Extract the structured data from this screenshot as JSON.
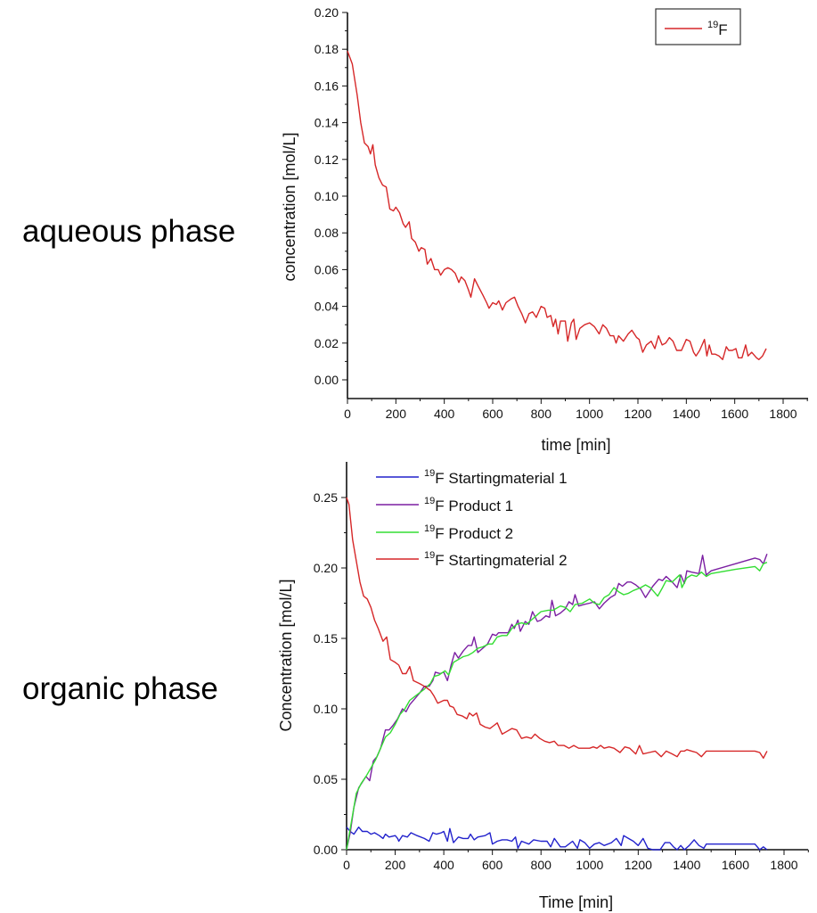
{
  "labels": {
    "top": "aqueous phase",
    "bottom": "organic phase"
  },
  "chart_data": [
    {
      "type": "line",
      "title": "",
      "xlabel": "time [min]",
      "ylabel": "concentration [mol/L]",
      "xlim": [
        0,
        1900
      ],
      "ylim": [
        -0.015,
        0.2
      ],
      "xticks": [
        "0",
        "200",
        "400",
        "600",
        "800",
        "1000",
        "1200",
        "1400",
        "1600",
        "1800"
      ],
      "yticks": [
        "0.00",
        "0.02",
        "0.04",
        "0.06",
        "0.08",
        "0.10",
        "0.12",
        "0.14",
        "0.16",
        "0.18",
        "0.20"
      ],
      "legend_position": "top-right",
      "grid": false,
      "series": [
        {
          "name": "19F",
          "sup": "19",
          "label": "F",
          "color": "#d62728",
          "x": [
            0,
            20,
            40,
            55,
            70,
            85,
            95,
            105,
            115,
            130,
            145,
            160,
            175,
            190,
            200,
            215,
            230,
            240,
            255,
            265,
            280,
            295,
            305,
            320,
            330,
            345,
            360,
            375,
            385,
            400,
            415,
            430,
            445,
            460,
            470,
            485,
            500,
            510,
            525,
            540,
            560,
            575,
            585,
            600,
            615,
            625,
            640,
            655,
            675,
            690,
            705,
            720,
            735,
            750,
            765,
            780,
            800,
            815,
            825,
            840,
            850,
            860,
            870,
            880,
            900,
            910,
            925,
            935,
            945,
            960,
            980,
            1000,
            1020,
            1040,
            1055,
            1070,
            1085,
            1100,
            1110,
            1120,
            1140,
            1160,
            1175,
            1195,
            1205,
            1220,
            1235,
            1255,
            1270,
            1285,
            1300,
            1315,
            1330,
            1345,
            1360,
            1380,
            1400,
            1415,
            1430,
            1440,
            1455,
            1475,
            1485,
            1495,
            1505,
            1520,
            1535,
            1550,
            1565,
            1575,
            1590,
            1605,
            1615,
            1630,
            1645,
            1655,
            1670,
            1690,
            1700,
            1715,
            1730
          ],
          "y": [
            0.179,
            0.172,
            0.155,
            0.14,
            0.129,
            0.127,
            0.123,
            0.128,
            0.117,
            0.11,
            0.106,
            0.105,
            0.093,
            0.092,
            0.094,
            0.091,
            0.085,
            0.083,
            0.086,
            0.077,
            0.075,
            0.07,
            0.072,
            0.071,
            0.063,
            0.066,
            0.06,
            0.06,
            0.057,
            0.06,
            0.061,
            0.06,
            0.058,
            0.053,
            0.056,
            0.054,
            0.049,
            0.045,
            0.055,
            0.051,
            0.046,
            0.042,
            0.039,
            0.042,
            0.041,
            0.043,
            0.038,
            0.042,
            0.044,
            0.045,
            0.04,
            0.036,
            0.031,
            0.036,
            0.037,
            0.034,
            0.04,
            0.039,
            0.034,
            0.035,
            0.029,
            0.033,
            0.025,
            0.032,
            0.032,
            0.021,
            0.031,
            0.033,
            0.022,
            0.028,
            0.03,
            0.031,
            0.029,
            0.025,
            0.03,
            0.028,
            0.024,
            0.024,
            0.02,
            0.024,
            0.021,
            0.025,
            0.027,
            0.023,
            0.022,
            0.015,
            0.019,
            0.021,
            0.017,
            0.024,
            0.019,
            0.02,
            0.023,
            0.021,
            0.016,
            0.016,
            0.022,
            0.021,
            0.015,
            0.013,
            0.016,
            0.022,
            0.013,
            0.019,
            0.014,
            0.014,
            0.013,
            0.011,
            0.018,
            0.016,
            0.016,
            0.017,
            0.012,
            0.012,
            0.019,
            0.013,
            0.015,
            0.012,
            0.011,
            0.013,
            0.017
          ]
        }
      ]
    },
    {
      "type": "line",
      "title": "",
      "xlabel": "Time [min]",
      "ylabel": "Concentration [mol/L]",
      "xlim": [
        0,
        1900
      ],
      "ylim": [
        0,
        0.275
      ],
      "xticks": [
        "0",
        "200",
        "400",
        "600",
        "800",
        "1000",
        "1200",
        "1400",
        "1600",
        "1800"
      ],
      "yticks": [
        "0.00",
        "0.05",
        "0.10",
        "0.15",
        "0.20",
        "0.25"
      ],
      "legend_position": "top-left",
      "grid": false,
      "series": [
        {
          "name": "19F Startingmaterial 1",
          "sup": "19",
          "label": "F Startingmaterial 1",
          "color": "#2222cc",
          "x": [
            0,
            15,
            30,
            50,
            65,
            85,
            100,
            115,
            135,
            150,
            160,
            175,
            200,
            210,
            215,
            230,
            250,
            265,
            290,
            320,
            340,
            355,
            370,
            390,
            400,
            415,
            425,
            440,
            460,
            480,
            500,
            510,
            525,
            540,
            570,
            590,
            600,
            620,
            640,
            660,
            680,
            695,
            705,
            720,
            750,
            770,
            800,
            825,
            840,
            855,
            880,
            900,
            930,
            950,
            960,
            980,
            1000,
            1020,
            1040,
            1060,
            1090,
            1110,
            1130,
            1140,
            1160,
            1180,
            1200,
            1220,
            1240,
            1260,
            1290,
            1310,
            1330,
            1345,
            1360,
            1375,
            1390,
            1410,
            1430,
            1450,
            1470,
            1480,
            1550,
            1600,
            1680,
            1700,
            1715,
            1730
          ],
          "y": [
            0.016,
            0.013,
            0.011,
            0.016,
            0.013,
            0.013,
            0.011,
            0.012,
            0.01,
            0.008,
            0.011,
            0.009,
            0.01,
            0.008,
            0.006,
            0.01,
            0.009,
            0.012,
            0.01,
            0.008,
            0.006,
            0.012,
            0.011,
            0.012,
            0.013,
            0.006,
            0.015,
            0.005,
            0.009,
            0.008,
            0.008,
            0.011,
            0.007,
            0.009,
            0.01,
            0.012,
            0.004,
            0.006,
            0.007,
            0.007,
            0.006,
            0.009,
            0.001,
            0.006,
            0.004,
            0.007,
            0.006,
            0.006,
            0.002,
            0.008,
            0.002,
            0.002,
            0.006,
            0.001,
            0.007,
            0.005,
            0.001,
            0.004,
            0.005,
            0.003,
            0.005,
            0.008,
            0.003,
            0.01,
            0.008,
            0.006,
            0.003,
            0.008,
            0.001,
            0.0,
            0.0,
            0.005,
            0.005,
            0.002,
            0.0,
            0.003,
            0.0,
            0.003,
            0.007,
            0.003,
            0.001,
            0.004,
            0.004,
            0.004,
            0.004,
            0.0,
            0.002,
            0.0
          ]
        },
        {
          "name": "19F Product 1",
          "sup": "19",
          "label": "F Product 1",
          "color": "#7b1fa2",
          "x": [
            0,
            15,
            30,
            50,
            65,
            80,
            95,
            110,
            125,
            140,
            160,
            175,
            190,
            210,
            230,
            245,
            260,
            280,
            300,
            320,
            340,
            355,
            365,
            385,
            400,
            415,
            430,
            445,
            460,
            480,
            500,
            515,
            525,
            540,
            560,
            580,
            600,
            615,
            625,
            650,
            665,
            680,
            690,
            705,
            715,
            735,
            750,
            765,
            785,
            800,
            820,
            835,
            845,
            860,
            880,
            900,
            915,
            930,
            940,
            955,
            975,
            1000,
            1020,
            1040,
            1060,
            1085,
            1105,
            1120,
            1135,
            1155,
            1170,
            1190,
            1210,
            1230,
            1260,
            1285,
            1300,
            1315,
            1340,
            1360,
            1375,
            1390,
            1400,
            1420,
            1450,
            1465,
            1480,
            1500,
            1600,
            1680,
            1700,
            1715,
            1730
          ],
          "y": [
            0,
            0.012,
            0.03,
            0.044,
            0.048,
            0.052,
            0.049,
            0.063,
            0.066,
            0.072,
            0.085,
            0.085,
            0.088,
            0.093,
            0.1,
            0.098,
            0.103,
            0.107,
            0.111,
            0.116,
            0.116,
            0.12,
            0.126,
            0.125,
            0.126,
            0.12,
            0.131,
            0.14,
            0.136,
            0.141,
            0.145,
            0.145,
            0.151,
            0.14,
            0.143,
            0.146,
            0.153,
            0.152,
            0.154,
            0.154,
            0.154,
            0.16,
            0.157,
            0.163,
            0.155,
            0.162,
            0.16,
            0.169,
            0.162,
            0.163,
            0.166,
            0.165,
            0.177,
            0.166,
            0.168,
            0.171,
            0.176,
            0.174,
            0.181,
            0.173,
            0.174,
            0.175,
            0.176,
            0.171,
            0.175,
            0.179,
            0.181,
            0.189,
            0.187,
            0.19,
            0.19,
            0.188,
            0.185,
            0.179,
            0.187,
            0.192,
            0.191,
            0.194,
            0.19,
            0.186,
            0.195,
            0.189,
            0.198,
            0.197,
            0.196,
            0.209,
            0.195,
            0.198,
            0.203,
            0.207,
            0.206,
            0.203,
            0.21
          ]
        },
        {
          "name": "19F Product 2",
          "sup": "19",
          "label": "F Product 2",
          "color": "#33dd33",
          "x": [
            0,
            20,
            40,
            60,
            80,
            100,
            120,
            140,
            160,
            180,
            200,
            220,
            240,
            260,
            290,
            320,
            345,
            360,
            380,
            405,
            420,
            440,
            460,
            480,
            500,
            520,
            540,
            560,
            585,
            600,
            620,
            640,
            660,
            680,
            700,
            720,
            740,
            760,
            780,
            800,
            830,
            850,
            880,
            900,
            920,
            940,
            970,
            1000,
            1020,
            1040,
            1060,
            1080,
            1100,
            1120,
            1140,
            1160,
            1180,
            1210,
            1230,
            1250,
            1280,
            1300,
            1315,
            1340,
            1370,
            1380,
            1400,
            1420,
            1440,
            1460,
            1480,
            1500,
            1600,
            1680,
            1700,
            1715,
            1730
          ],
          "y": [
            0,
            0.02,
            0.04,
            0.047,
            0.052,
            0.058,
            0.064,
            0.072,
            0.08,
            0.083,
            0.089,
            0.096,
            0.1,
            0.106,
            0.11,
            0.114,
            0.118,
            0.123,
            0.124,
            0.127,
            0.124,
            0.133,
            0.135,
            0.137,
            0.138,
            0.14,
            0.143,
            0.144,
            0.146,
            0.146,
            0.151,
            0.152,
            0.152,
            0.157,
            0.16,
            0.161,
            0.16,
            0.163,
            0.166,
            0.169,
            0.17,
            0.17,
            0.173,
            0.172,
            0.169,
            0.174,
            0.175,
            0.178,
            0.175,
            0.174,
            0.179,
            0.181,
            0.186,
            0.183,
            0.181,
            0.182,
            0.184,
            0.186,
            0.188,
            0.186,
            0.18,
            0.186,
            0.191,
            0.19,
            0.195,
            0.186,
            0.193,
            0.195,
            0.194,
            0.197,
            0.194,
            0.196,
            0.199,
            0.201,
            0.198,
            0.203,
            0.204
          ]
        },
        {
          "name": "19F Startingmaterial 2",
          "sup": "19",
          "label": "F Startingmaterial 2",
          "color": "#d62728",
          "x": [
            0,
            10,
            25,
            40,
            55,
            70,
            85,
            100,
            115,
            130,
            150,
            165,
            180,
            200,
            215,
            230,
            245,
            260,
            275,
            300,
            320,
            345,
            360,
            375,
            400,
            415,
            425,
            440,
            455,
            475,
            495,
            505,
            520,
            535,
            550,
            570,
            590,
            605,
            620,
            640,
            660,
            680,
            700,
            720,
            740,
            760,
            775,
            795,
            815,
            835,
            855,
            870,
            895,
            915,
            935,
            955,
            975,
            1000,
            1015,
            1030,
            1045,
            1060,
            1080,
            1100,
            1125,
            1145,
            1165,
            1190,
            1205,
            1220,
            1245,
            1270,
            1295,
            1315,
            1340,
            1360,
            1375,
            1390,
            1400,
            1420,
            1440,
            1460,
            1480,
            1550,
            1680,
            1700,
            1715,
            1730
          ],
          "y": [
            0.25,
            0.245,
            0.22,
            0.205,
            0.19,
            0.18,
            0.178,
            0.172,
            0.163,
            0.157,
            0.148,
            0.151,
            0.135,
            0.133,
            0.131,
            0.125,
            0.125,
            0.13,
            0.12,
            0.118,
            0.116,
            0.113,
            0.109,
            0.104,
            0.106,
            0.106,
            0.102,
            0.101,
            0.096,
            0.095,
            0.093,
            0.097,
            0.095,
            0.097,
            0.089,
            0.087,
            0.086,
            0.088,
            0.09,
            0.082,
            0.084,
            0.086,
            0.085,
            0.079,
            0.08,
            0.079,
            0.082,
            0.079,
            0.077,
            0.076,
            0.077,
            0.074,
            0.074,
            0.072,
            0.074,
            0.072,
            0.072,
            0.072,
            0.073,
            0.072,
            0.074,
            0.072,
            0.073,
            0.072,
            0.069,
            0.073,
            0.072,
            0.068,
            0.074,
            0.068,
            0.069,
            0.07,
            0.066,
            0.07,
            0.068,
            0.066,
            0.07,
            0.07,
            0.071,
            0.07,
            0.069,
            0.066,
            0.07,
            0.07,
            0.07,
            0.069,
            0.065,
            0.07
          ]
        }
      ]
    }
  ]
}
